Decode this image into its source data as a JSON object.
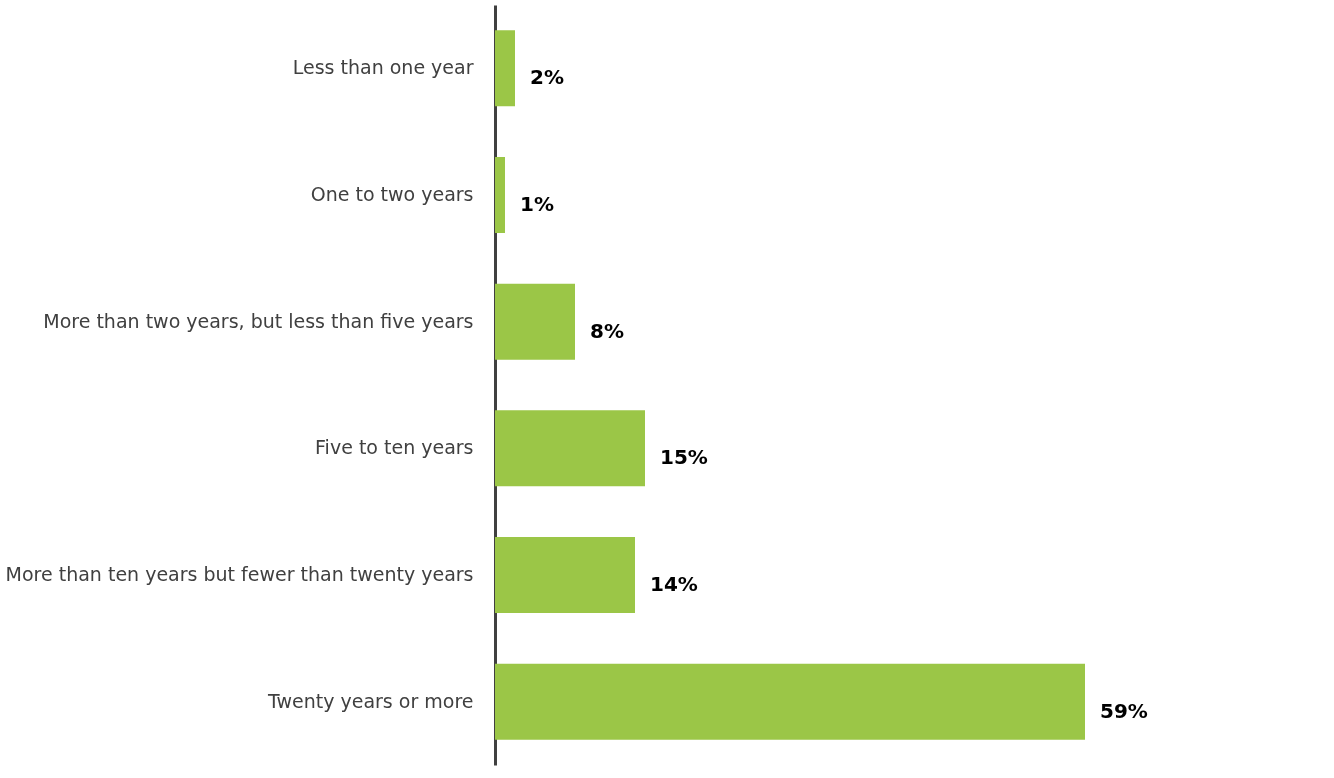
{
  "chart_data": {
    "type": "bar",
    "orientation": "horizontal",
    "categories": [
      "Less than one year",
      "One to two years",
      "More than two years, but less than five years",
      "Five to ten years",
      "More than ten years but fewer than twenty years",
      "Twenty years or more"
    ],
    "values": [
      2,
      1,
      8,
      15,
      14,
      59
    ],
    "value_labels": [
      "2%",
      "1%",
      "8%",
      "15%",
      "14%",
      "59%"
    ],
    "color": "#9bc647",
    "grid": false
  }
}
